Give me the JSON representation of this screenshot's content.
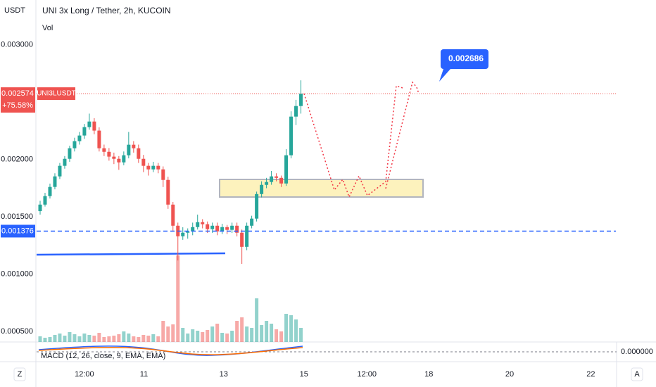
{
  "chart_data": {
    "type": "candlestick",
    "title": "UNI 3x Long / Tether, 2h, KUCOIN",
    "volume_label": "Vol",
    "currency": "USDT",
    "symbol": "UNI3LUSDT",
    "last_price": 0.002574,
    "change_label": "+75.58%",
    "support_price": 0.001376,
    "target_label": "0.002686",
    "macd_label": "MACD (12, 26, close, 9, EMA, EMA)",
    "macd_zero_label": "0.000000",
    "up_color": "#26a69a",
    "down_color": "#ef5350",
    "ylim": [
      0.00041,
      0.00339
    ],
    "yticks": [
      {
        "value": 0.003,
        "label": "0.003000"
      },
      {
        "value": 0.002,
        "label": "0.002000"
      },
      {
        "value": 0.0015,
        "label": "0.001500"
      },
      {
        "value": 0.001,
        "label": "0.001000"
      },
      {
        "value": 0.0005,
        "label": "0.000500"
      }
    ],
    "xlim": [
      -1,
      117
    ],
    "xticks": [
      {
        "value": 9,
        "label": "12:00"
      },
      {
        "value": 21.1,
        "label": "11"
      },
      {
        "value": 37.3,
        "label": "13"
      },
      {
        "value": 53.6,
        "label": "15"
      },
      {
        "value": 66.4,
        "label": "12:00"
      },
      {
        "value": 79,
        "label": "18"
      },
      {
        "value": 95.4,
        "label": "20"
      },
      {
        "value": 111.9,
        "label": "22"
      }
    ],
    "ohlc": [
      [
        0.00155,
        0.00164,
        0.00152,
        0.001607
      ],
      [
        0.001607,
        0.00171,
        0.00159,
        0.001681
      ],
      [
        0.001681,
        0.00179,
        0.00166,
        0.001761
      ],
      [
        0.001761,
        0.00188,
        0.00174,
        0.001853
      ],
      [
        0.001853,
        0.00197,
        0.00183,
        0.001945
      ],
      [
        0.001945,
        0.00203,
        0.00192,
        0.002006
      ],
      [
        0.002006,
        0.00212,
        0.00198,
        0.002098
      ],
      [
        0.002098,
        0.00219,
        0.00207,
        0.00216
      ],
      [
        0.00216,
        0.00224,
        0.00213,
        0.002209
      ],
      [
        0.002209,
        0.00231,
        0.00218,
        0.002282
      ],
      [
        0.002282,
        0.0024,
        0.00226,
        0.002331
      ],
      [
        0.002331,
        0.00236,
        0.00222,
        0.002252
      ],
      [
        0.002252,
        0.00228,
        0.00207,
        0.002098
      ],
      [
        0.002098,
        0.00213,
        0.00203,
        0.002067
      ],
      [
        0.002067,
        0.0021,
        0.00199,
        0.002025
      ],
      [
        0.002025,
        0.00206,
        0.00196,
        0.002006
      ],
      [
        0.002006,
        0.00203,
        0.00191,
        0.001975
      ],
      [
        0.001975,
        0.00207,
        0.00195,
        0.002037
      ],
      [
        0.002037,
        0.00224,
        0.00201,
        0.002129
      ],
      [
        0.002129,
        0.00216,
        0.00206,
        0.002098
      ],
      [
        0.002098,
        0.00213,
        0.00197,
        0.002006
      ],
      [
        0.002006,
        0.00204,
        0.00189,
        0.001945
      ],
      [
        0.001945,
        0.00197,
        0.00186,
        0.001914
      ],
      [
        0.001914,
        0.00198,
        0.00189,
        0.001945
      ],
      [
        0.001945,
        0.00197,
        0.00188,
        0.001914
      ],
      [
        0.001914,
        0.00194,
        0.00176,
        0.001822
      ],
      [
        0.001822,
        0.00185,
        0.00157,
        0.001607
      ],
      [
        0.001607,
        0.00163,
        0.00138,
        0.001423
      ],
      [
        0.001423,
        0.00145,
        0.00112,
        0.001331
      ],
      [
        0.001331,
        0.00141,
        0.0013,
        0.001362
      ],
      [
        0.001362,
        0.0014,
        0.00131,
        0.001374
      ],
      [
        0.001374,
        0.00145,
        0.00134,
        0.001411
      ],
      [
        0.001411,
        0.00152,
        0.00139,
        0.001454
      ],
      [
        0.001454,
        0.00148,
        0.0014,
        0.001436
      ],
      [
        0.001436,
        0.00146,
        0.00136,
        0.001393
      ],
      [
        0.001393,
        0.00145,
        0.00136,
        0.001423
      ],
      [
        0.001423,
        0.00145,
        0.00134,
        0.001374
      ],
      [
        0.001374,
        0.00144,
        0.00135,
        0.001411
      ],
      [
        0.001411,
        0.00143,
        0.00135,
        0.001387
      ],
      [
        0.001387,
        0.00145,
        0.00136,
        0.001423
      ],
      [
        0.001423,
        0.00145,
        0.00133,
        0.001362
      ],
      [
        0.001362,
        0.00139,
        0.00109,
        0.001239
      ],
      [
        0.001239,
        0.00145,
        0.00121,
        0.001423
      ],
      [
        0.001423,
        0.00151,
        0.0014,
        0.001485
      ],
      [
        0.001485,
        0.00172,
        0.00146,
        0.001699
      ],
      [
        0.001699,
        0.00181,
        0.00167,
        0.001779
      ],
      [
        0.001779,
        0.00184,
        0.00175,
        0.001804
      ],
      [
        0.001804,
        0.0019,
        0.00178,
        0.001853
      ],
      [
        0.001853,
        0.00188,
        0.00181,
        0.00184
      ],
      [
        0.00184,
        0.00186,
        0.00176,
        0.001791
      ],
      [
        0.001791,
        0.00209,
        0.00177,
        0.002037
      ],
      [
        0.002037,
        0.00242,
        0.00201,
        0.002374
      ],
      [
        0.002374,
        0.00252,
        0.0023,
        0.002466
      ],
      [
        0.002466,
        0.00269,
        0.0024,
        0.002574
      ]
    ],
    "volume": [
      8,
      6,
      7,
      10,
      12,
      9,
      14,
      11,
      8,
      12,
      10,
      9,
      13,
      7,
      8,
      9,
      11,
      15,
      12,
      8,
      7,
      10,
      9,
      11,
      8,
      30,
      22,
      25,
      123,
      20,
      12,
      18,
      16,
      14,
      17,
      22,
      26,
      13,
      12,
      16,
      30,
      35,
      22,
      20,
      62,
      24,
      30,
      26,
      18,
      15,
      40,
      38,
      32,
      20
    ]
  }
}
